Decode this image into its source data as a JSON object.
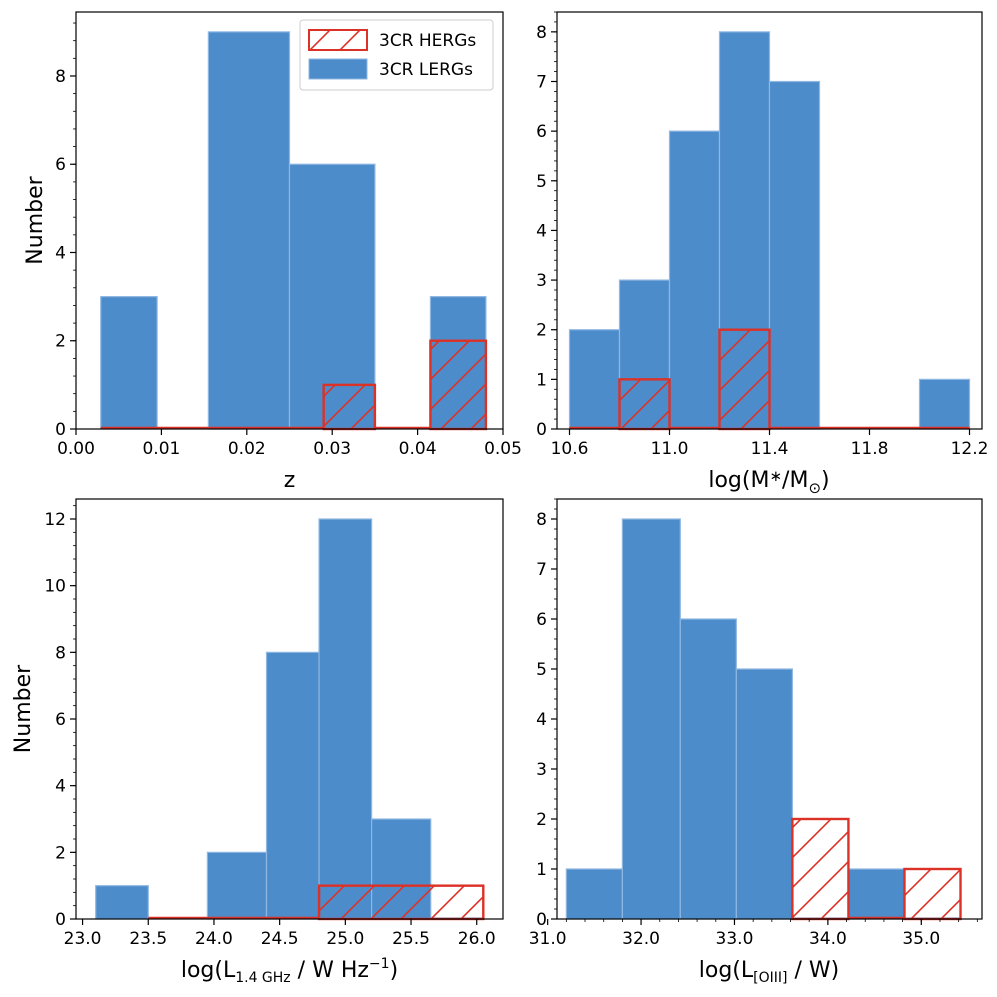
{
  "colors": {
    "lerg": "#4d8ccb",
    "lerg_edge": "#8fb7e2",
    "herg": "#dc3127"
  },
  "legend": {
    "herg_label": "3CR HERGs",
    "lerg_label": "3CR LERGs"
  },
  "chart_data": [
    {
      "type": "bar",
      "panel": "top-left",
      "xlabel": "z",
      "ylabel": "Number",
      "xlim": [
        0.0,
        0.05
      ],
      "ylim": [
        0,
        9.45
      ],
      "xticks": [
        0.0,
        0.01,
        0.02,
        0.03,
        0.04,
        0.05
      ],
      "xtick_labels": [
        "0.00",
        "0.01",
        "0.02",
        "0.03",
        "0.04",
        "0.05"
      ],
      "yticks": [
        0,
        2,
        4,
        6,
        8
      ],
      "ytick_labels": [
        "0",
        "2",
        "4",
        "6",
        "8"
      ],
      "minor_y_step": 0.4,
      "legend_position": "top-right",
      "series": [
        {
          "name": "3CR LERGs",
          "style": "filled",
          "edges": [
            0.0029,
            0.0095,
            0.0155,
            0.025,
            0.035,
            0.0415,
            0.048
          ],
          "counts": [
            3,
            0,
            9,
            6,
            0,
            3
          ]
        },
        {
          "name": "3CR HERGs",
          "style": "hatched",
          "edges": [
            0.0029,
            0.0095,
            0.0155,
            0.025,
            0.029,
            0.035,
            0.0415,
            0.048
          ],
          "counts": [
            0,
            0,
            0,
            0,
            1,
            0,
            2
          ]
        }
      ]
    },
    {
      "type": "bar",
      "panel": "top-right",
      "xlabel": "log(M∗/M⊙)",
      "xlabel_parts": {
        "a": "log(M",
        "b": "∗",
        "c": "/M",
        "d": "⊙",
        "e": ")"
      },
      "ylabel": "",
      "xlim": [
        10.55,
        12.25
      ],
      "ylim": [
        0,
        8.4
      ],
      "xticks": [
        10.6,
        11.0,
        11.4,
        11.8,
        12.2
      ],
      "xtick_labels": [
        "10.6",
        "11.0",
        "11.4",
        "11.8",
        "12.2"
      ],
      "yticks": [
        0,
        1,
        2,
        3,
        4,
        5,
        6,
        7,
        8
      ],
      "ytick_labels": [
        "0",
        "1",
        "2",
        "3",
        "4",
        "5",
        "6",
        "7",
        "8"
      ],
      "minor_y_step": 0.2,
      "series": [
        {
          "name": "3CR LERGs",
          "style": "filled",
          "edges": [
            10.6,
            10.8,
            11.0,
            11.2,
            11.4,
            11.6,
            11.8,
            12.0,
            12.2
          ],
          "counts": [
            2,
            3,
            6,
            8,
            7,
            0,
            0,
            1
          ]
        },
        {
          "name": "3CR HERGs",
          "style": "hatched",
          "edges": [
            10.6,
            10.8,
            11.0,
            11.2,
            11.4,
            11.6,
            11.8,
            12.0,
            12.2
          ],
          "counts": [
            0,
            1,
            0,
            2,
            0,
            0,
            0,
            0
          ]
        }
      ]
    },
    {
      "type": "bar",
      "panel": "bottom-left",
      "xlabel": "log(L1.4 GHz / W Hz−1)",
      "xlabel_parts": {
        "a": "log(L",
        "b": "1.4 GHz",
        "c": " / W Hz",
        "d": "−1",
        "e": ")"
      },
      "ylabel": "Number",
      "xlim": [
        22.95,
        26.2
      ],
      "ylim": [
        0,
        12.6
      ],
      "xticks": [
        23.0,
        23.5,
        24.0,
        24.5,
        25.0,
        25.5,
        26.0
      ],
      "xtick_labels": [
        "23.0",
        "23.5",
        "24.0",
        "24.5",
        "25.0",
        "25.5",
        "26.0"
      ],
      "yticks": [
        0,
        2,
        4,
        6,
        8,
        10,
        12
      ],
      "ytick_labels": [
        "0",
        "2",
        "4",
        "6",
        "8",
        "10",
        "12"
      ],
      "minor_y_step": 0.4,
      "series": [
        {
          "name": "3CR LERGs",
          "style": "filled",
          "edges": [
            23.1,
            23.5,
            23.95,
            24.4,
            24.8,
            25.2,
            25.65,
            26.05
          ],
          "counts": [
            1,
            0,
            2,
            8,
            12,
            3,
            0
          ]
        },
        {
          "name": "3CR HERGs",
          "style": "hatched",
          "edges": [
            23.5,
            23.95,
            24.4,
            24.8,
            26.05
          ],
          "counts": [
            0,
            0,
            0,
            1
          ]
        }
      ]
    },
    {
      "type": "bar",
      "panel": "bottom-right",
      "xlabel": "log(L[OIII] / W)",
      "xlabel_parts": {
        "a": "log(L",
        "b": "[OIII]",
        "c": " / W)",
        "d": "",
        "e": ""
      },
      "ylabel": "",
      "xlim": [
        31.1,
        35.65
      ],
      "ylim": [
        0,
        8.4
      ],
      "xticks": [
        31.0,
        32.0,
        33.0,
        34.0,
        35.0
      ],
      "xtick_labels": [
        "31.0",
        "32.0",
        "33.0",
        "34.0",
        "35.0"
      ],
      "yticks": [
        0,
        1,
        2,
        3,
        4,
        5,
        6,
        7,
        8
      ],
      "ytick_labels": [
        "0",
        "1",
        "2",
        "3",
        "4",
        "5",
        "6",
        "7",
        "8"
      ],
      "minor_y_step": 0.2,
      "minor_x_step": 0.2,
      "series": [
        {
          "name": "3CR LERGs",
          "style": "filled",
          "edges": [
            31.2,
            31.8,
            32.42,
            33.02,
            33.62,
            34.22,
            34.82,
            35.42
          ],
          "counts": [
            1,
            8,
            6,
            5,
            0,
            1,
            0
          ]
        },
        {
          "name": "3CR HERGs",
          "style": "hatched",
          "edges": [
            33.62,
            34.22,
            34.82,
            35.42
          ],
          "counts": [
            2,
            0,
            1
          ]
        }
      ]
    }
  ]
}
